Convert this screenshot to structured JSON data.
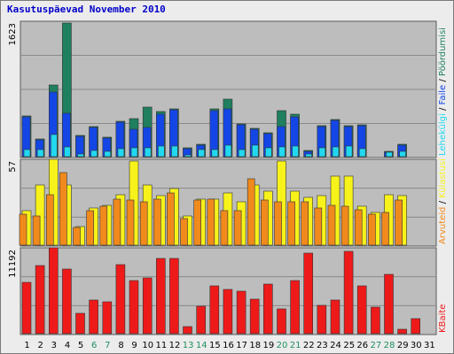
{
  "page": {
    "title": "Kasutuspäevad November 2010"
  },
  "colors": {
    "panel_bg": "#bdbdbd",
    "frame_bg": "#ececec",
    "title": "#0000c8",
    "hits": "#1f7f5f",
    "files": "#1446e6",
    "pages": "#22d8f0",
    "visits": "#f7f21a",
    "sites": "#f08a1c",
    "kbytes": "#ee1a1a",
    "weekend_day_label": "#1f8f5f",
    "weekday_label": "#000000"
  },
  "chart_data": [
    {
      "type": "bar",
      "panel": "top",
      "ymax_label": "1623",
      "ylim": [
        0,
        1623
      ],
      "legend": [
        "Pöördumisi",
        "Faile",
        "Lehekülgi"
      ],
      "legend_sep": "/",
      "categories": [
        "1",
        "2",
        "3",
        "4",
        "5",
        "6",
        "7",
        "8",
        "9",
        "10",
        "11",
        "12",
        "13",
        "14",
        "15",
        "16",
        "17",
        "18",
        "19",
        "20",
        "21",
        "22",
        "23",
        "24",
        "25",
        "26",
        "27",
        "28",
        "29",
        "30",
        "31"
      ],
      "series": [
        {
          "name": "Pöördumisi",
          "color_key": "hits",
          "values": [
            500,
            220,
            860,
            1600,
            260,
            370,
            240,
            430,
            460,
            600,
            550,
            580,
            120,
            160,
            580,
            700,
            400,
            350,
            290,
            560,
            520,
            80,
            380,
            450,
            380,
            390,
            0,
            70,
            160,
            0,
            0
          ]
        },
        {
          "name": "Faile",
          "color_key": "files",
          "values": [
            490,
            210,
            780,
            530,
            250,
            360,
            230,
            420,
            340,
            360,
            520,
            570,
            110,
            150,
            560,
            580,
            390,
            340,
            280,
            370,
            490,
            70,
            370,
            440,
            370,
            380,
            0,
            60,
            150,
            0,
            0
          ]
        },
        {
          "name": "Lehekülgi",
          "color_key": "pages",
          "values": [
            90,
            100,
            270,
            130,
            40,
            80,
            70,
            110,
            120,
            120,
            140,
            140,
            30,
            90,
            100,
            150,
            100,
            150,
            120,
            130,
            140,
            40,
            120,
            130,
            140,
            110,
            0,
            60,
            70,
            0,
            0
          ]
        }
      ]
    },
    {
      "type": "bar",
      "panel": "middle",
      "ymax_label": "57",
      "ylim": [
        0,
        57
      ],
      "legend": [
        "Külastusi",
        "Arvuteid"
      ],
      "legend_sep": "/",
      "categories": [
        "1",
        "2",
        "3",
        "4",
        "5",
        "6",
        "7",
        "8",
        "9",
        "10",
        "11",
        "12",
        "13",
        "14",
        "15",
        "16",
        "17",
        "18",
        "19",
        "20",
        "21",
        "22",
        "23",
        "24",
        "25",
        "26",
        "27",
        "28",
        "29",
        "30",
        "31"
      ],
      "series": [
        {
          "name": "Külastusi",
          "color_key": "visits",
          "values": [
            23,
            40,
            57,
            40,
            13,
            25,
            27,
            34,
            56,
            40,
            33,
            38,
            20,
            31,
            31,
            35,
            29,
            40,
            36,
            56,
            36,
            32,
            33,
            46,
            46,
            26,
            22,
            34,
            33,
            0,
            0
          ]
        },
        {
          "name": "Arvuteid",
          "color_key": "sites",
          "values": [
            21,
            20,
            34,
            48,
            12,
            23,
            26,
            31,
            30,
            29,
            31,
            35,
            18,
            30,
            31,
            23,
            23,
            44,
            30,
            29,
            29,
            29,
            25,
            27,
            26,
            24,
            21,
            22,
            30,
            0,
            0
          ]
        }
      ]
    },
    {
      "type": "bar",
      "panel": "bottom",
      "ymax_label": "11192",
      "ylim": [
        0,
        11192
      ],
      "legend": [
        "KBaite"
      ],
      "categories": [
        "1",
        "2",
        "3",
        "4",
        "5",
        "6",
        "7",
        "8",
        "9",
        "10",
        "11",
        "12",
        "13",
        "14",
        "15",
        "16",
        "17",
        "18",
        "19",
        "20",
        "21",
        "22",
        "23",
        "24",
        "25",
        "26",
        "27",
        "28",
        "29",
        "30",
        "31"
      ],
      "series": [
        {
          "name": "KBaite",
          "color_key": "kbytes",
          "values": [
            6700,
            8900,
            11192,
            8500,
            2700,
            4500,
            4200,
            9000,
            7000,
            7300,
            9800,
            9800,
            1000,
            3700,
            6300,
            5800,
            5600,
            4600,
            6500,
            3300,
            7000,
            10500,
            3800,
            4400,
            10700,
            6300,
            3500,
            7800,
            700,
            2000,
            0
          ]
        }
      ]
    }
  ]
}
